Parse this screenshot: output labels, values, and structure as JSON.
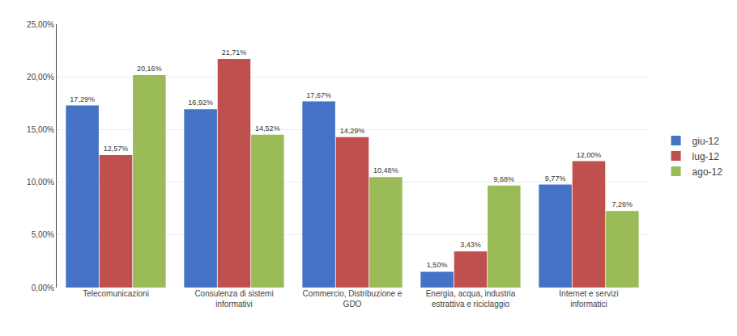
{
  "chart_data": {
    "type": "bar",
    "categories": [
      "Telecomunicazioni",
      "Consulenza di sistemi\ninformativi",
      "Commercio, Distribuzione e\nGDO",
      "Energia, acqua, industria\nestrattiva e riciclaggio",
      "Internet e servizi\ninformatici"
    ],
    "series": [
      {
        "name": "giu-12",
        "color": "#4472C4",
        "values": [
          17.29,
          16.92,
          17.67,
          1.5,
          9.77
        ],
        "value_labels": [
          "17,29%",
          "16,92%",
          "17,67%",
          "1,50%",
          "9,77%"
        ]
      },
      {
        "name": "lug-12",
        "color": "#C0504D",
        "values": [
          12.57,
          21.71,
          14.29,
          3.43,
          12.0
        ],
        "value_labels": [
          "12,57%",
          "21,71%",
          "14,29%",
          "3,43%",
          "12,00%"
        ]
      },
      {
        "name": "ago-12",
        "color": "#9BBB59",
        "values": [
          20.16,
          14.52,
          10.48,
          9.68,
          7.26
        ],
        "value_labels": [
          "20,16%",
          "14,52%",
          "10,48%",
          "9,68%",
          "7,26%"
        ]
      }
    ],
    "ylim": [
      0,
      25
    ],
    "yticks": [
      {
        "value": 0,
        "label": "0,00%"
      },
      {
        "value": 5,
        "label": "5,00%"
      },
      {
        "value": 10,
        "label": "10,00%"
      },
      {
        "value": 15,
        "label": "15,00%"
      },
      {
        "value": 20,
        "label": "20,00%"
      },
      {
        "value": 25,
        "label": "25,00%"
      }
    ],
    "grid": true,
    "legend": "right",
    "data_labels": true
  }
}
